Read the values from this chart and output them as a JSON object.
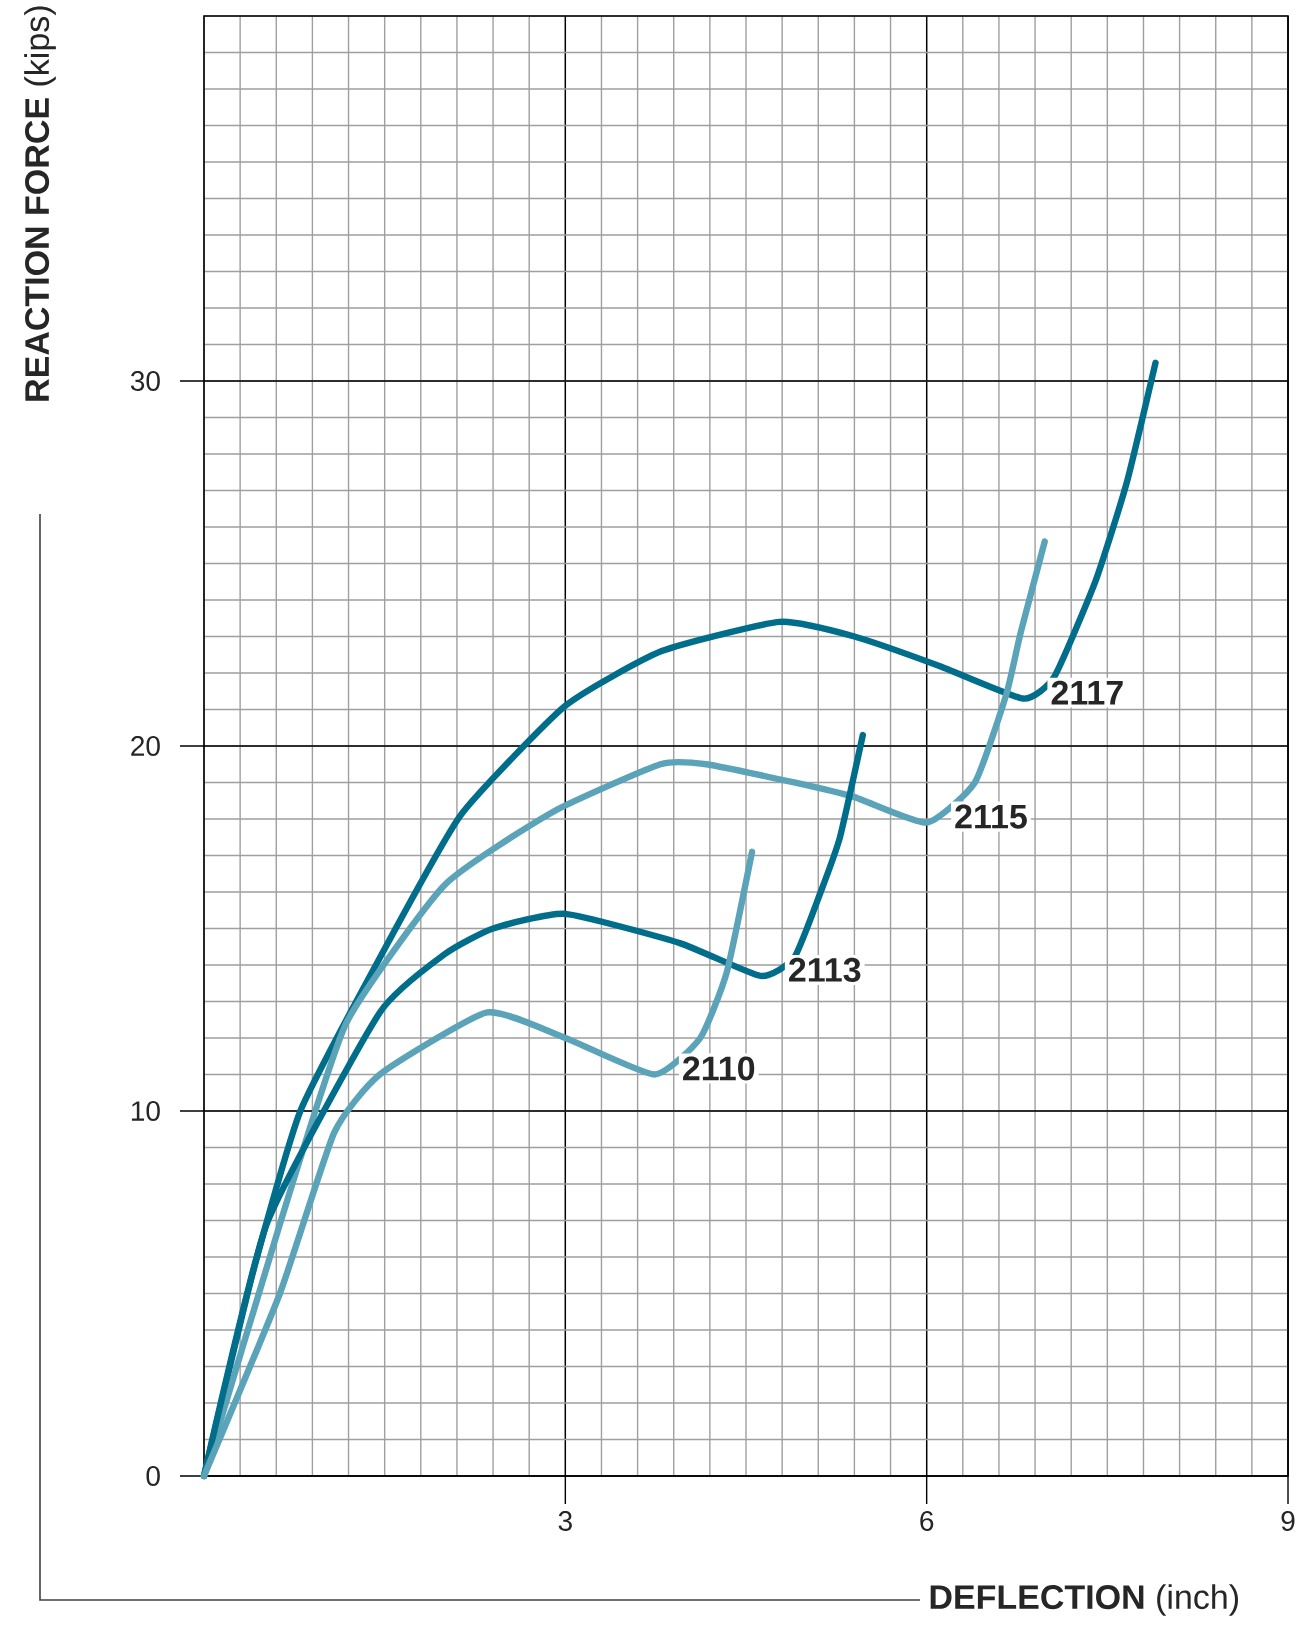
{
  "chart_data": {
    "type": "line",
    "xlabel": "**DEFLECTION** (inch)",
    "ylabel": "**REACTION FORCE** (kips)",
    "xlim": [
      0,
      9
    ],
    "ylim": [
      0,
      40
    ],
    "xticks": [
      3,
      6,
      9
    ],
    "yticks": [
      0,
      10,
      20,
      30
    ],
    "grid": true,
    "marker": "none",
    "line_style": "solid",
    "series": [
      {
        "name": "2117",
        "color": "#006e8a",
        "x": [
          0,
          0.4,
          0.8,
          1.46,
          2.13,
          3.0,
          3.8,
          4.78,
          5.4,
          6.1,
          6.8,
          7.06,
          7.4,
          7.66,
          7.9
        ],
        "values": [
          0,
          5.5,
          10.0,
          14.2,
          18.1,
          21.1,
          22.6,
          23.4,
          23.0,
          22.2,
          21.3,
          21.9,
          24.5,
          27.2,
          30.5
        ]
      },
      {
        "name": "2115",
        "color": "#5aa3b8",
        "x": [
          0,
          0.63,
          1.18,
          2.0,
          2.9,
          3.79,
          4.17,
          4.9,
          5.4,
          6.0,
          6.4,
          6.66,
          6.78,
          6.98
        ],
        "values": [
          0,
          6.9,
          12.4,
          16.2,
          18.2,
          19.5,
          19.5,
          19.0,
          18.6,
          17.9,
          19.0,
          21.4,
          23.1,
          25.6
        ]
      },
      {
        "name": "2113",
        "color": "#006e8a",
        "x": [
          0,
          0.52,
          1.46,
          2.0,
          2.4,
          3.0,
          3.95,
          4.62,
          4.9,
          5.12,
          5.28,
          5.47
        ],
        "values": [
          0,
          6.9,
          12.7,
          14.3,
          15.0,
          15.4,
          14.6,
          13.7,
          14.2,
          16.0,
          17.5,
          20.3
        ]
      },
      {
        "name": "2110",
        "color": "#5aa3b8",
        "x": [
          0,
          0.63,
          1.08,
          1.46,
          2.35,
          3.0,
          3.74,
          4.12,
          4.34,
          4.55
        ],
        "values": [
          0,
          5.0,
          9.4,
          11.0,
          12.7,
          12.0,
          11.0,
          12.0,
          13.8,
          17.1
        ]
      }
    ]
  }
}
